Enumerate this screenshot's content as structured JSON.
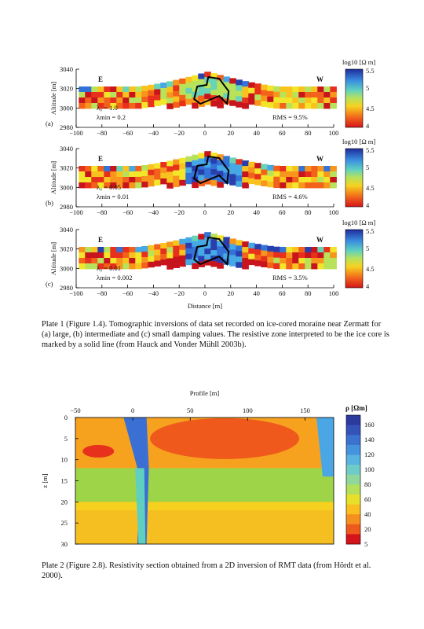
{
  "plate1": {
    "panels": [
      {
        "id": "a",
        "label": "(a)",
        "lambda0": "λ₀ = 1.0",
        "lambdamin": "λmin = 0.2",
        "rms": "RMS = 9.5%"
      },
      {
        "id": "b",
        "label": "(b)",
        "lambda0": "λ₀ = 0.05",
        "lambdamin": "λmin = 0.01",
        "rms": "RMS = 4.6%"
      },
      {
        "id": "c",
        "label": "(c)",
        "lambda0": "λ₀ = 0.01",
        "lambdamin": "λmin = 0.002",
        "rms": "RMS = 3.5%"
      }
    ],
    "east_label": "E",
    "west_label": "W",
    "ylabel": "Altitude [m]",
    "xlabel": "Distance [m]",
    "yticks": [
      "3040",
      "3020",
      "3000",
      "2980"
    ],
    "xticks": [
      "−100",
      "−80",
      "−60",
      "−40",
      "−20",
      "0",
      "20",
      "40",
      "60",
      "80",
      "100"
    ],
    "colorbar_title": "log10 [Ω m]",
    "colorbar_ticks": [
      "5.5",
      "5",
      "4.5",
      "4"
    ],
    "caption": "Plate 1 (Figure 1.4). Tomographic inversions of data set recorded on ice-cored moraine near Zermatt for (a) large, (b) intermediate and (c) small damping values. The resistive zone interpreted to be the ice core is marked by a solid line (from Hauck and Vonder Mühll 2003b)."
  },
  "plate2": {
    "top_label": "Profile [m]",
    "xticks": [
      "−50",
      "0",
      "50",
      "100",
      "150"
    ],
    "ylabel": "z [m]",
    "yticks": [
      "0",
      "5",
      "10",
      "15",
      "20",
      "25",
      "30"
    ],
    "colorbar_title": "ρ [Ωm]",
    "colorbar_ticks": [
      "160",
      "140",
      "120",
      "100",
      "80",
      "60",
      "40",
      "20",
      "5"
    ],
    "caption": "Plate 2 (Figure 2.8). Resistivity section obtained from a 2D inversion of RMT data (from Hördt et al. 2000)."
  },
  "chart_data": [
    {
      "type": "heatmap",
      "title": "",
      "xlabel": "Distance [m]",
      "ylabel": "Altitude [m]",
      "xlim": [
        -100,
        100
      ],
      "ylim": [
        2980,
        3040
      ],
      "colorbar": {
        "label": "log10 [Ω m]",
        "range": [
          4,
          5.5
        ]
      },
      "panels": [
        "(a)",
        "(b)",
        "(c)"
      ]
    },
    {
      "type": "heatmap",
      "title": "",
      "xlabel": "Profile [m]",
      "ylabel": "z [m]",
      "xlim": [
        -50,
        175
      ],
      "ylim": [
        30,
        0
      ],
      "colorbar": {
        "label": "ρ [Ωm]",
        "range": [
          5,
          170
        ]
      }
    }
  ]
}
